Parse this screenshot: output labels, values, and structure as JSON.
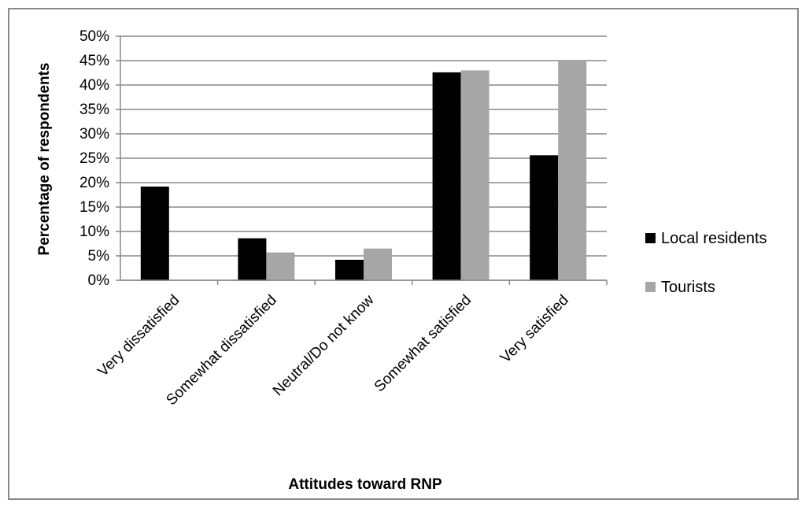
{
  "chart_data": {
    "type": "bar",
    "title": "",
    "xlabel": "Attitudes toward RNP",
    "ylabel": "Percentage of respondents",
    "categories": [
      "Very dissatisfied",
      "Somewhat dissatisfied",
      "Neutral/Do not know",
      "Somewhat satisfied",
      "Very satisfied"
    ],
    "series": [
      {
        "name": "Local residents",
        "color": "#000000",
        "values": [
          19.2,
          8.6,
          4.2,
          42.6,
          25.6
        ]
      },
      {
        "name": "Tourists",
        "color": "#a6a6a6",
        "values": [
          0,
          5.7,
          6.5,
          43.0,
          45.0
        ]
      }
    ],
    "ylim": [
      0,
      50
    ],
    "yticks": [
      "0%",
      "5%",
      "10%",
      "15%",
      "20%",
      "25%",
      "30%",
      "35%",
      "40%",
      "45%",
      "50%"
    ],
    "grid": true,
    "legend": "right"
  }
}
